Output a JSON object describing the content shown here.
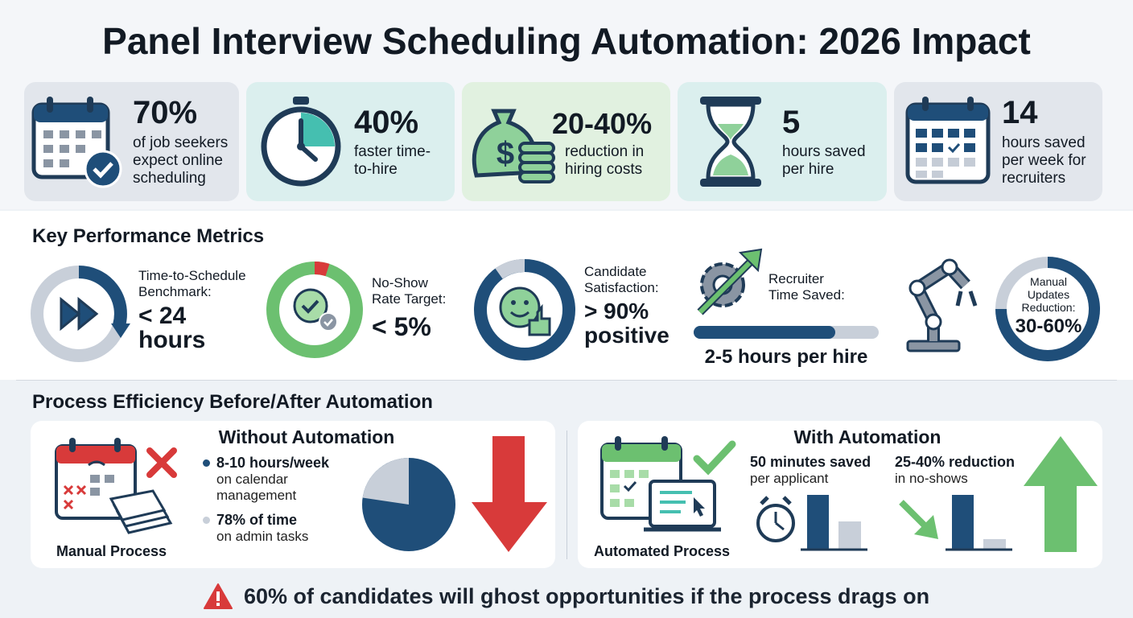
{
  "title": "Panel Interview Scheduling Automation: 2026 Impact",
  "stats": [
    {
      "value": "70%",
      "label": "of job seekers expect online scheduling"
    },
    {
      "value": "40%",
      "label": "faster time-to-hire"
    },
    {
      "value": "20-40%",
      "label": "reduction in hiring costs"
    },
    {
      "value": "5",
      "label": "hours saved per hire"
    },
    {
      "value": "14",
      "label": "hours saved per week for recruiters"
    }
  ],
  "metrics": {
    "title": "Key Performance Metrics",
    "items": [
      {
        "label": "Time-to-Schedule Benchmark:",
        "value": "< 24 hours"
      },
      {
        "label": "No-Show Rate Target:",
        "value": "< 5%"
      },
      {
        "label": "Candidate Satisfaction:",
        "value": "> 90% positive"
      },
      {
        "label": "Recruiter Time Saved:",
        "value": "2-5 hours per hire"
      },
      {
        "label": "Manual Updates Reduction:",
        "value": "30-60%"
      }
    ]
  },
  "process": {
    "title": "Process Efficiency Before/After Automation",
    "without": {
      "title": "Without Automation",
      "caption": "Manual Process",
      "points": [
        {
          "value": "8-10 hours/week",
          "text": "on calendar management"
        },
        {
          "value": "78% of time",
          "text": "on admin tasks"
        }
      ]
    },
    "with": {
      "title": "With Automation",
      "caption": "Automated Process",
      "points": [
        {
          "value": "50 minutes saved",
          "text": "per applicant"
        },
        {
          "value": "25-40% reduction",
          "text": "in no-shows"
        }
      ]
    }
  },
  "alert": "60% of candidates will ghost opportunities if the process drags on"
}
